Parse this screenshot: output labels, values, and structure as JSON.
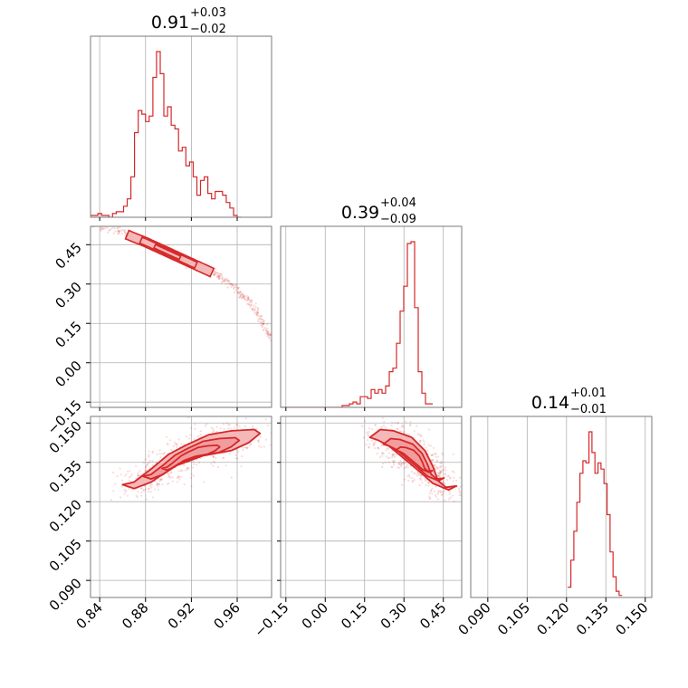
{
  "chart_data": {
    "type": "corner",
    "color": "#d62728",
    "fill_color": "#f4b8b9",
    "grid": true,
    "parameters": [
      {
        "title": "0.91",
        "upper": "+0.03",
        "lower": "−0.02",
        "range": [
          0.832,
          0.99
        ],
        "ticks": [
          0.84,
          0.88,
          0.92,
          0.96
        ],
        "tick_labels": [
          "0.84",
          "0.88",
          "0.92",
          "0.96"
        ]
      },
      {
        "title": "0.39",
        "upper": "+0.04",
        "lower": "−0.09",
        "range": [
          -0.17,
          0.52
        ],
        "ticks": [
          -0.15,
          0.0,
          0.15,
          0.3,
          0.45
        ],
        "tick_labels": [
          "−0.15",
          "0.00",
          "0.15",
          "0.30",
          "0.45"
        ]
      },
      {
        "title": "0.14",
        "upper": "+0.01",
        "lower": "−0.01",
        "range": [
          0.0835,
          0.1525
        ],
        "ticks": [
          0.09,
          0.105,
          0.12,
          0.135,
          0.15
        ],
        "tick_labels": [
          "0.090",
          "0.105",
          "0.120",
          "0.135",
          "0.150"
        ]
      }
    ],
    "histograms": [
      {
        "param": 0,
        "edges_start": 0.832,
        "bin_width": 0.0032,
        "counts": [
          1,
          1,
          2,
          1,
          1,
          0,
          2,
          3,
          3,
          6,
          10,
          22,
          46,
          58,
          56,
          52,
          55,
          76,
          90,
          78,
          55,
          60,
          50,
          48,
          36,
          38,
          28,
          30,
          22,
          12,
          20,
          22,
          13,
          10,
          14,
          14,
          12,
          8,
          5,
          1,
          0
        ]
      },
      {
        "param": 1,
        "edges_start": -0.17,
        "bin_width": 0.0138,
        "counts": [
          0,
          0,
          0,
          0,
          0,
          0,
          0,
          0,
          0,
          0,
          0,
          0,
          0,
          0,
          0,
          0,
          0,
          1,
          1,
          2,
          3,
          2,
          6,
          6,
          5,
          10,
          8,
          10,
          8,
          12,
          20,
          22,
          36,
          54,
          68,
          92,
          93,
          56,
          20,
          8,
          2,
          2
        ]
      },
      {
        "param": 2,
        "edges_start": 0.1205,
        "bin_width": 0.00115,
        "counts": [
          5,
          18,
          32,
          46,
          60,
          66,
          65,
          80,
          70,
          60,
          65,
          62,
          55,
          40,
          22,
          10,
          3,
          1
        ]
      }
    ],
    "contours": [
      {
        "x_param": 0,
        "y_param": 1,
        "ridge": [
          [
            0.833,
            0.53
          ],
          [
            0.86,
            0.495
          ],
          [
            0.88,
            0.46
          ],
          [
            0.9,
            0.42
          ],
          [
            0.92,
            0.38
          ],
          [
            0.94,
            0.34
          ],
          [
            0.96,
            0.28
          ],
          [
            0.975,
            0.21
          ],
          [
            0.99,
            0.09
          ]
        ]
      },
      {
        "x_param": 0,
        "y_param": 2,
        "outer": [
          [
            0.86,
            0.1265
          ],
          [
            0.87,
            0.1275
          ],
          [
            0.885,
            0.1325
          ],
          [
            0.9,
            0.138
          ],
          [
            0.915,
            0.1415
          ],
          [
            0.935,
            0.1455
          ],
          [
            0.955,
            0.147
          ],
          [
            0.975,
            0.1475
          ],
          [
            0.98,
            0.146
          ],
          [
            0.97,
            0.1425
          ],
          [
            0.955,
            0.1395
          ],
          [
            0.93,
            0.1375
          ],
          [
            0.905,
            0.1335
          ],
          [
            0.885,
            0.1275
          ],
          [
            0.87,
            0.125
          ]
        ]
      },
      {
        "x_param": 1,
        "y_param": 2,
        "outer": [
          [
            0.17,
            0.1445
          ],
          [
            0.21,
            0.1475
          ],
          [
            0.26,
            0.147
          ],
          [
            0.33,
            0.1445
          ],
          [
            0.38,
            0.1395
          ],
          [
            0.41,
            0.1335
          ],
          [
            0.43,
            0.128
          ],
          [
            0.46,
            0.1255
          ],
          [
            0.5,
            0.126
          ],
          [
            0.47,
            0.1245
          ],
          [
            0.41,
            0.127
          ],
          [
            0.36,
            0.1315
          ],
          [
            0.3,
            0.1365
          ],
          [
            0.24,
            0.1415
          ],
          [
            0.2,
            0.1435
          ]
        ]
      }
    ]
  }
}
